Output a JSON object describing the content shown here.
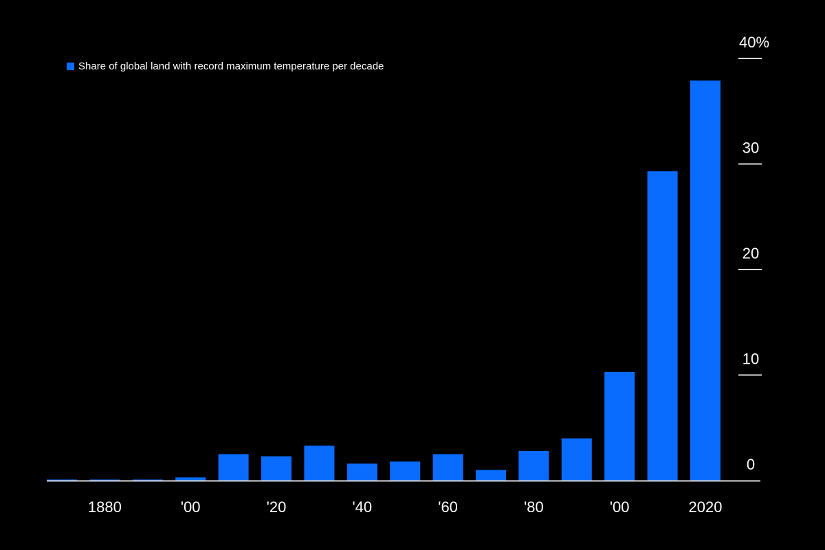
{
  "chart_data": {
    "type": "bar",
    "title": "",
    "xlabel": "",
    "ylabel": "",
    "legend": [
      {
        "label": "Share of global land with record maximum temperature per decade"
      }
    ],
    "categories": [
      "1870",
      "1880",
      "1890",
      "1900",
      "1910",
      "1920",
      "1930",
      "1940",
      "1950",
      "1960",
      "1970",
      "1980",
      "1990",
      "2000",
      "2010",
      "2020"
    ],
    "series": [
      {
        "name": "Share of global land with record maximum temperature per decade",
        "values": [
          0.1,
          0.1,
          0.1,
          0.3,
          2.5,
          2.3,
          3.3,
          1.6,
          1.8,
          2.5,
          1.0,
          2.8,
          4.0,
          10.3,
          29.3,
          37.9
        ]
      }
    ],
    "xtick_labels": [
      {
        "category": "1880",
        "label": "1880"
      },
      {
        "category": "1900",
        "label": "'00"
      },
      {
        "category": "1920",
        "label": "'20"
      },
      {
        "category": "1940",
        "label": "'40"
      },
      {
        "category": "1960",
        "label": "'60"
      },
      {
        "category": "1980",
        "label": "'80"
      },
      {
        "category": "2000",
        "label": "'00"
      },
      {
        "category": "2020",
        "label": "2020"
      }
    ],
    "yticks": [
      {
        "value": 0,
        "label": "0"
      },
      {
        "value": 10,
        "label": "10"
      },
      {
        "value": 20,
        "label": "20"
      },
      {
        "value": 30,
        "label": "30"
      },
      {
        "value": 40,
        "label": "40%"
      }
    ],
    "ylim": [
      0,
      40
    ],
    "legend_position": "top-left",
    "grid": false
  },
  "colors": {
    "background": "#000000",
    "bar": "#0a6cff",
    "axis": "#d9d9d9",
    "text": "#ffffff"
  }
}
